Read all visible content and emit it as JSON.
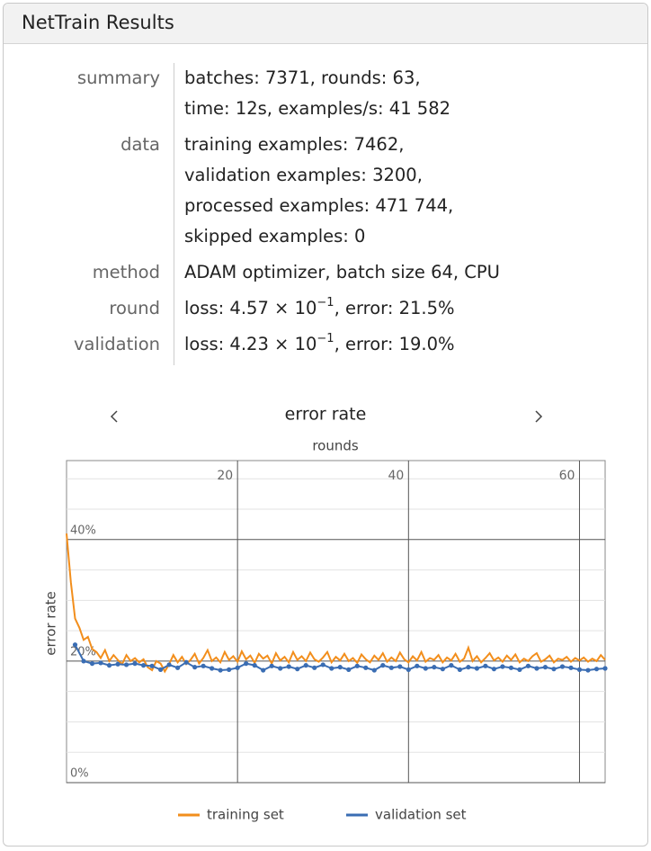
{
  "header": {
    "title": "NetTrain Results"
  },
  "summary": {
    "rows": [
      {
        "label": "summary",
        "lines": [
          "batches: 7371, rounds: 63,",
          "time: 12s, examples/s: 41 582"
        ]
      },
      {
        "label": "data",
        "lines": [
          "training examples: 7462,",
          "validation examples: 3200,",
          "processed examples: 471 744,",
          "skipped examples: 0"
        ]
      },
      {
        "label": "method",
        "lines": [
          "ADAM optimizer, batch size 64, CPU"
        ]
      },
      {
        "label": "round",
        "lines": [
          [
            "loss: 4.57 × 10",
            "−1",
            ", error: 21.5%"
          ]
        ]
      },
      {
        "label": "validation",
        "lines": [
          [
            "loss: 4.23 × 10",
            "−1",
            ", error: 19.0%"
          ]
        ]
      }
    ]
  },
  "chart_data": {
    "type": "line",
    "title": "error rate",
    "x_label": "rounds",
    "y_label": "error rate",
    "xlim": [
      0,
      63
    ],
    "ylim": [
      0,
      53
    ],
    "xticks": [
      20,
      40,
      60
    ],
    "yticks": [
      {
        "value": 0,
        "label": "0%"
      },
      {
        "value": 20,
        "label": "20%"
      },
      {
        "value": 40,
        "label": "40%"
      }
    ],
    "yminorticks": [
      5,
      10,
      15,
      25,
      30,
      35,
      45,
      50
    ],
    "grid": true,
    "legend": "bottom",
    "series": [
      {
        "name": "training set",
        "color": "#f28e1c",
        "marker": false,
        "x": [
          0,
          0.5,
          1,
          1.5,
          2,
          2.5,
          3,
          3.5,
          4,
          4.5,
          5,
          5.5,
          6,
          6.5,
          7,
          7.5,
          8,
          8.5,
          9,
          9.5,
          10,
          10.5,
          11,
          11.5,
          12,
          12.5,
          13,
          13.5,
          14,
          14.5,
          15,
          15.5,
          16,
          16.5,
          17,
          17.5,
          18,
          18.5,
          19,
          19.5,
          20,
          20.5,
          21,
          21.5,
          22,
          22.5,
          23,
          23.5,
          24,
          24.5,
          25,
          25.5,
          26,
          26.5,
          27,
          27.5,
          28,
          28.5,
          29,
          29.5,
          30,
          30.5,
          31,
          31.5,
          32,
          32.5,
          33,
          33.5,
          34,
          34.5,
          35,
          35.5,
          36,
          36.5,
          37,
          37.5,
          38,
          38.5,
          39,
          39.5,
          40,
          40.5,
          41,
          41.5,
          42,
          42.5,
          43,
          43.5,
          44,
          44.5,
          45,
          45.5,
          46,
          46.5,
          47,
          47.5,
          48,
          48.5,
          49,
          49.5,
          50,
          50.5,
          51,
          51.5,
          52,
          52.5,
          53,
          53.5,
          54,
          54.5,
          55,
          55.5,
          56,
          56.5,
          57,
          57.5,
          58,
          58.5,
          59,
          59.5,
          60,
          60.5,
          61,
          61.5,
          62,
          62.5,
          63
        ],
        "values": [
          41,
          33,
          27,
          25.5,
          23.5,
          24,
          22,
          21.5,
          20.5,
          21.8,
          20,
          21,
          20.2,
          19.5,
          21,
          20,
          20.5,
          19.8,
          20.3,
          19,
          18.5,
          20,
          19.6,
          18.3,
          19.5,
          21,
          19.8,
          20.7,
          19.5,
          20.2,
          21.2,
          19.6,
          20.5,
          21.8,
          20,
          20.6,
          19.8,
          21.5,
          20.2,
          20.8,
          19.9,
          21.6,
          20.3,
          20.9,
          19.7,
          21.2,
          20.4,
          20.9,
          19.6,
          21.3,
          20.1,
          20.7,
          19.8,
          21.5,
          20.2,
          20.8,
          20,
          21.4,
          20.3,
          19.9,
          20.6,
          21.5,
          19.8,
          20.7,
          20.1,
          21.2,
          20,
          20.5,
          19.7,
          21.1,
          20.3,
          19.8,
          20.9,
          20.2,
          21.3,
          19.9,
          20.6,
          20,
          21.4,
          20.3,
          19.8,
          20.8,
          20.1,
          21.5,
          19.9,
          20.5,
          20.2,
          21,
          19.8,
          20.6,
          20.1,
          21.2,
          19.9,
          20.4,
          22.2,
          20,
          20.8,
          19.8,
          20.5,
          21.3,
          20.1,
          20.6,
          19.9,
          20.9,
          20.2,
          21.1,
          19.8,
          20.4,
          20,
          20.8,
          21.3,
          19.9,
          20.3,
          20.9,
          19.8,
          20.4,
          20.2,
          20.7,
          19.9,
          20.5,
          20.1,
          20.6,
          19.9,
          20.4,
          20,
          21,
          20.2
        ]
      },
      {
        "name": "validation set",
        "color": "#3a6db3",
        "marker": true,
        "x": [
          1,
          2,
          3,
          4,
          5,
          6,
          7,
          8,
          9,
          10,
          11,
          12,
          13,
          14,
          15,
          16,
          17,
          18,
          19,
          20,
          21,
          22,
          23,
          24,
          25,
          26,
          27,
          28,
          29,
          30,
          31,
          32,
          33,
          34,
          35,
          36,
          37,
          38,
          39,
          40,
          41,
          42,
          43,
          44,
          45,
          46,
          47,
          48,
          49,
          50,
          51,
          52,
          53,
          54,
          55,
          56,
          57,
          58,
          59,
          60,
          61,
          62,
          63
        ],
        "values": [
          22.7,
          20,
          19.6,
          19.7,
          19.3,
          19.5,
          19.4,
          19.6,
          19.3,
          19.2,
          18.6,
          19.4,
          18.9,
          19.8,
          19,
          19.2,
          18.8,
          18.5,
          18.6,
          18.9,
          19.6,
          19.3,
          18.5,
          19.2,
          18.8,
          19.1,
          18.7,
          19.3,
          18.9,
          19.4,
          18.8,
          19,
          18.6,
          19.2,
          18.9,
          18.5,
          19.3,
          18.9,
          19.1,
          18.6,
          19.2,
          18.8,
          19,
          18.7,
          19.3,
          18.6,
          19,
          18.8,
          19.2,
          18.7,
          19.1,
          18.9,
          18.6,
          19.2,
          18.8,
          19,
          18.7,
          19.1,
          18.9,
          18.6,
          18.5,
          18.7,
          18.8
        ]
      }
    ]
  }
}
